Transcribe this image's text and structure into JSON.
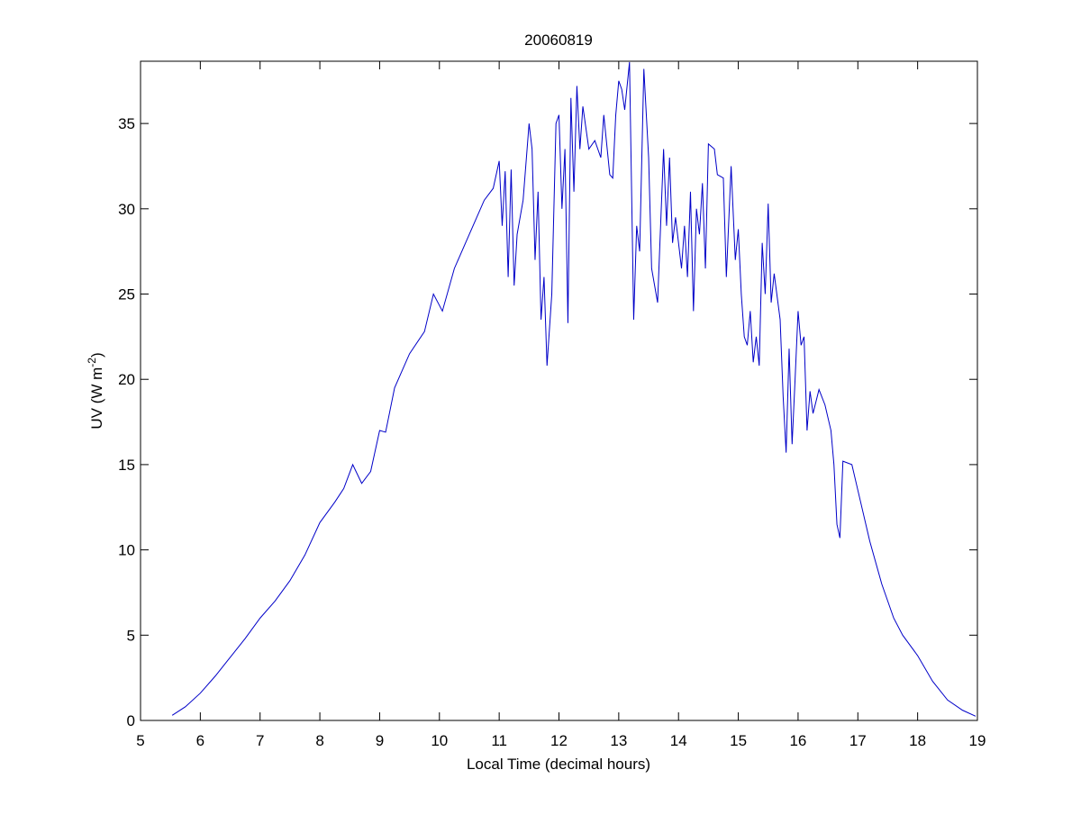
{
  "chart_data": {
    "type": "line",
    "title": "20060819",
    "xlabel": "Local Time (decimal hours)",
    "ylabel": [
      "UV (W m",
      "-2",
      ")"
    ],
    "x": [
      5.53,
      5.75,
      6.0,
      6.25,
      6.5,
      6.75,
      7.0,
      7.25,
      7.5,
      7.75,
      8.0,
      8.25,
      8.4,
      8.55,
      8.7,
      8.85,
      9.0,
      9.1,
      9.25,
      9.5,
      9.75,
      9.9,
      10.05,
      10.25,
      10.5,
      10.75,
      10.9,
      11.0,
      11.05,
      11.1,
      11.15,
      11.2,
      11.25,
      11.3,
      11.4,
      11.5,
      11.55,
      11.6,
      11.65,
      11.7,
      11.75,
      11.8,
      11.88,
      11.95,
      12.0,
      12.05,
      12.1,
      12.15,
      12.2,
      12.25,
      12.3,
      12.35,
      12.4,
      12.5,
      12.6,
      12.7,
      12.75,
      12.85,
      12.9,
      12.95,
      13.0,
      13.05,
      13.1,
      13.18,
      13.25,
      13.3,
      13.35,
      13.42,
      13.5,
      13.55,
      13.65,
      13.75,
      13.8,
      13.85,
      13.9,
      13.95,
      14.05,
      14.1,
      14.15,
      14.2,
      14.25,
      14.3,
      14.35,
      14.4,
      14.45,
      14.5,
      14.6,
      14.65,
      14.75,
      14.8,
      14.88,
      14.95,
      15.0,
      15.05,
      15.1,
      15.15,
      15.2,
      15.25,
      15.3,
      15.35,
      15.4,
      15.45,
      15.5,
      15.55,
      15.6,
      15.7,
      15.75,
      15.8,
      15.85,
      15.9,
      15.95,
      16.0,
      16.05,
      16.1,
      16.15,
      16.2,
      16.25,
      16.35,
      16.45,
      16.55,
      16.6,
      16.65,
      16.7,
      16.75,
      16.9,
      17.0,
      17.2,
      17.4,
      17.6,
      17.75,
      18.0,
      18.25,
      18.5,
      18.75,
      18.97
    ],
    "values": [
      0.3,
      0.8,
      1.6,
      2.6,
      3.7,
      4.8,
      6.0,
      7.0,
      8.2,
      9.7,
      11.6,
      12.8,
      13.6,
      15.0,
      13.9,
      14.6,
      17.0,
      16.9,
      19.5,
      21.5,
      22.8,
      25.0,
      24.0,
      26.5,
      28.5,
      30.5,
      31.2,
      32.8,
      29.0,
      32.2,
      26.0,
      32.3,
      25.5,
      28.5,
      30.5,
      35.0,
      33.5,
      27.0,
      31.0,
      23.5,
      26.0,
      20.8,
      25.0,
      35.0,
      35.5,
      30.0,
      33.5,
      23.3,
      36.5,
      31.0,
      37.2,
      33.5,
      36.0,
      33.5,
      34.0,
      33.0,
      35.5,
      32.0,
      31.8,
      35.5,
      37.5,
      37.0,
      35.8,
      38.6,
      23.5,
      29.0,
      27.5,
      38.2,
      33.0,
      26.5,
      24.5,
      33.5,
      29.0,
      33.0,
      28.0,
      29.5,
      26.5,
      29.0,
      26.0,
      31.0,
      24.0,
      30.0,
      28.5,
      31.5,
      26.5,
      33.8,
      33.5,
      32.0,
      31.8,
      26.0,
      32.5,
      27.0,
      28.8,
      25.0,
      22.5,
      22.0,
      24.0,
      21.0,
      22.5,
      20.8,
      28.0,
      25.0,
      30.3,
      24.5,
      26.2,
      23.5,
      19.0,
      15.7,
      21.8,
      16.2,
      20.0,
      24.0,
      22.0,
      22.5,
      17.0,
      19.3,
      18.0,
      19.4,
      18.5,
      17.0,
      15.0,
      11.5,
      10.7,
      15.2,
      15.0,
      13.5,
      10.5,
      8.0,
      6.0,
      5.0,
      3.8,
      2.3,
      1.2,
      0.6,
      0.25
    ],
    "color": "#0000c8",
    "xlim": [
      5,
      19
    ],
    "xticks": [
      5,
      6,
      7,
      8,
      9,
      10,
      11,
      12,
      13,
      14,
      15,
      16,
      17,
      18,
      19
    ],
    "ylim": [
      0,
      38.65
    ],
    "yticks": [
      0,
      5,
      10,
      15,
      20,
      25,
      30,
      35
    ]
  }
}
